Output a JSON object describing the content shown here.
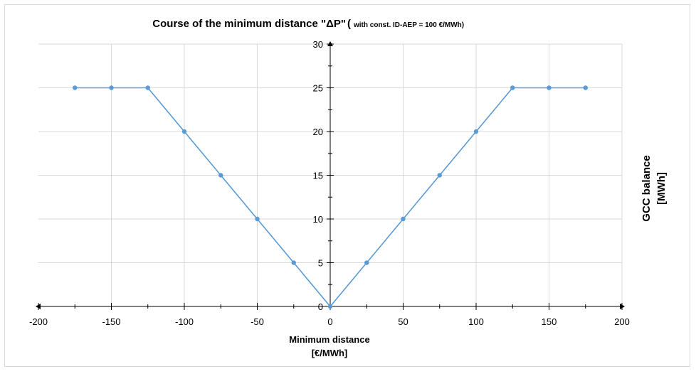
{
  "chart_data": {
    "type": "line",
    "title": "Course of the minimum distance \"ΔP\"",
    "subtitle_paren": "(",
    "subtitle": "with const. ID-AEP = 100 €/MWh)",
    "xlabel_line1": "Minimum distance",
    "xlabel_line2": "[€/MWh]",
    "ylabel_line1": "GCC balance",
    "ylabel_line2": "[MWh]",
    "xlim": [
      -200,
      200
    ],
    "ylim": [
      0,
      30
    ],
    "xticks": [
      -200,
      -150,
      -100,
      -50,
      0,
      50,
      100,
      150,
      200
    ],
    "yticks": [
      0,
      5,
      10,
      15,
      20,
      25,
      30
    ],
    "xtick_labels": [
      "-200",
      "-150",
      "-100",
      "-50",
      "0",
      "50",
      "100",
      "150",
      "200"
    ],
    "ytick_labels": [
      "0",
      "5",
      "10",
      "15",
      "20",
      "25",
      "30"
    ],
    "grid": true,
    "line_color": "#5b9bd5",
    "grid_color": "#d9d9d9",
    "series": [
      {
        "x": [
          -175,
          -150,
          -125,
          -100,
          -75,
          -50,
          -25,
          0,
          25,
          50,
          75,
          100,
          125,
          150,
          175
        ],
        "y": [
          25,
          25,
          25,
          20,
          15,
          10,
          5,
          0,
          5,
          10,
          15,
          20,
          25,
          25,
          25
        ]
      }
    ]
  }
}
